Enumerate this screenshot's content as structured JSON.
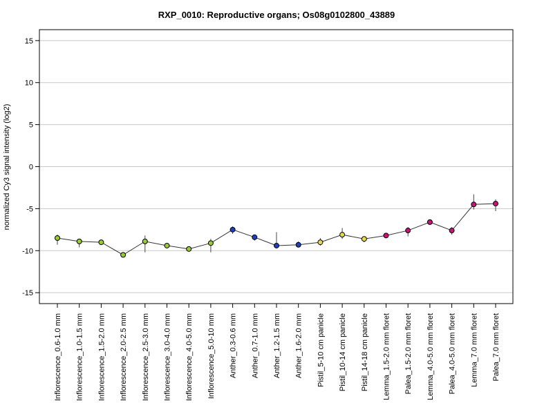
{
  "chart_data": {
    "type": "line",
    "title": "RXP_0010: Reproductive organs; Os08g0102800_43889",
    "xlabel": "",
    "ylabel": "normalized Cy3 signal intensity (log2)",
    "ylim": [
      -16.3,
      16.3
    ],
    "yticks": [
      15,
      10,
      5,
      0,
      -5,
      -10,
      -15
    ],
    "grid": true,
    "categories": [
      "Inflorescence_0.6-1.0 mm",
      "Inflorescence_1.0-1.5 mm",
      "Inflorescence_1.5-2.0 mm",
      "Inflorescence_2.0-2.5 mm",
      "Inflorescence_2.5-3.0 mm",
      "Inflorescence_3.0-4.0 mm",
      "Inflorescence_4.0-5.0 mm",
      "Inflorescence_5.0-10 mm",
      "Anther_0.3-0.6 mm",
      "Anther_0.7-1.0 mm",
      "Anther_1.2-1.5 mm",
      "Anther_1.6-2.0 mm",
      "Pistil_5-10 cm panicle",
      "Pistil_10-14 cm panicle",
      "Pistil_14-18 cm panicle",
      "Lemma_1.5-2.0 mm floret",
      "Palea_1.5-2.0 mm floret",
      "Lemma_4.0-5.0 mm floret",
      "Palea_4.0-5.0 mm floret",
      "Lemma_7.0 mm floret",
      "Palea_7.0 mm floret"
    ],
    "series": [
      {
        "values": [
          -8.5,
          -8.9,
          -9.0,
          -10.5,
          -8.9,
          -9.4,
          -9.8,
          -9.1,
          -7.5,
          -8.4,
          -9.4,
          -9.3,
          -9.0,
          -8.1,
          -8.6,
          -8.2,
          -7.6,
          -6.6,
          -7.6,
          -4.5,
          -4.4
        ],
        "err_low": [
          -9.3,
          -9.6,
          -9.2,
          -10.7,
          -10.2,
          -9.6,
          -10.1,
          -10.2,
          -8.0,
          -8.8,
          -9.5,
          -9.6,
          -9.4,
          -8.6,
          -9.0,
          -8.4,
          -8.3,
          -6.8,
          -8.1,
          -5.1,
          -5.3
        ],
        "err_high": [
          -8.1,
          -8.6,
          -8.9,
          -10.3,
          -8.2,
          -9.3,
          -9.6,
          -8.6,
          -7.1,
          -8.2,
          -7.8,
          -8.9,
          -8.5,
          -7.3,
          -8.3,
          -7.9,
          -7.2,
          -6.4,
          -7.2,
          -3.3,
          -3.9
        ],
        "colors": [
          "#99cc33",
          "#99cc33",
          "#99cc33",
          "#99cc33",
          "#99cc33",
          "#99cc33",
          "#99cc33",
          "#99cc33",
          "#1f3fbf",
          "#1f3fbf",
          "#1f3fbf",
          "#1f3fbf",
          "#e6d84a",
          "#e6d84a",
          "#e6d84a",
          "#cc1177",
          "#cc1177",
          "#cc1177",
          "#cc1177",
          "#cc1177",
          "#cc1177"
        ]
      }
    ]
  }
}
